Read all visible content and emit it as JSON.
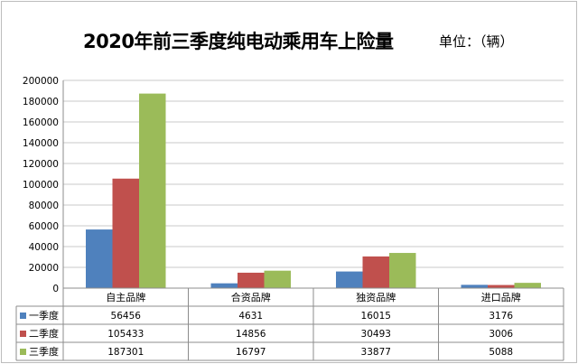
{
  "chart_data": {
    "type": "bar",
    "title": "2020年前三季度纯电动乘用车上险量",
    "unit": "单位：（辆）",
    "categories": [
      "自主品牌",
      "合资品牌",
      "独资品牌",
      "进口品牌"
    ],
    "series": [
      {
        "name": "一季度",
        "values": [
          56456,
          4631,
          16015,
          3176
        ],
        "color": "#4f81bd"
      },
      {
        "name": "二季度",
        "values": [
          105433,
          14856,
          30493,
          3006
        ],
        "color": "#c0504d"
      },
      {
        "name": "三季度",
        "values": [
          187301,
          16797,
          33877,
          5088
        ],
        "color": "#9bbb59"
      }
    ],
    "ylim": [
      0,
      200000
    ],
    "yticks": [
      0,
      20000,
      40000,
      60000,
      80000,
      100000,
      120000,
      140000,
      160000,
      180000,
      200000
    ],
    "grid": true,
    "legend": "data-table"
  }
}
